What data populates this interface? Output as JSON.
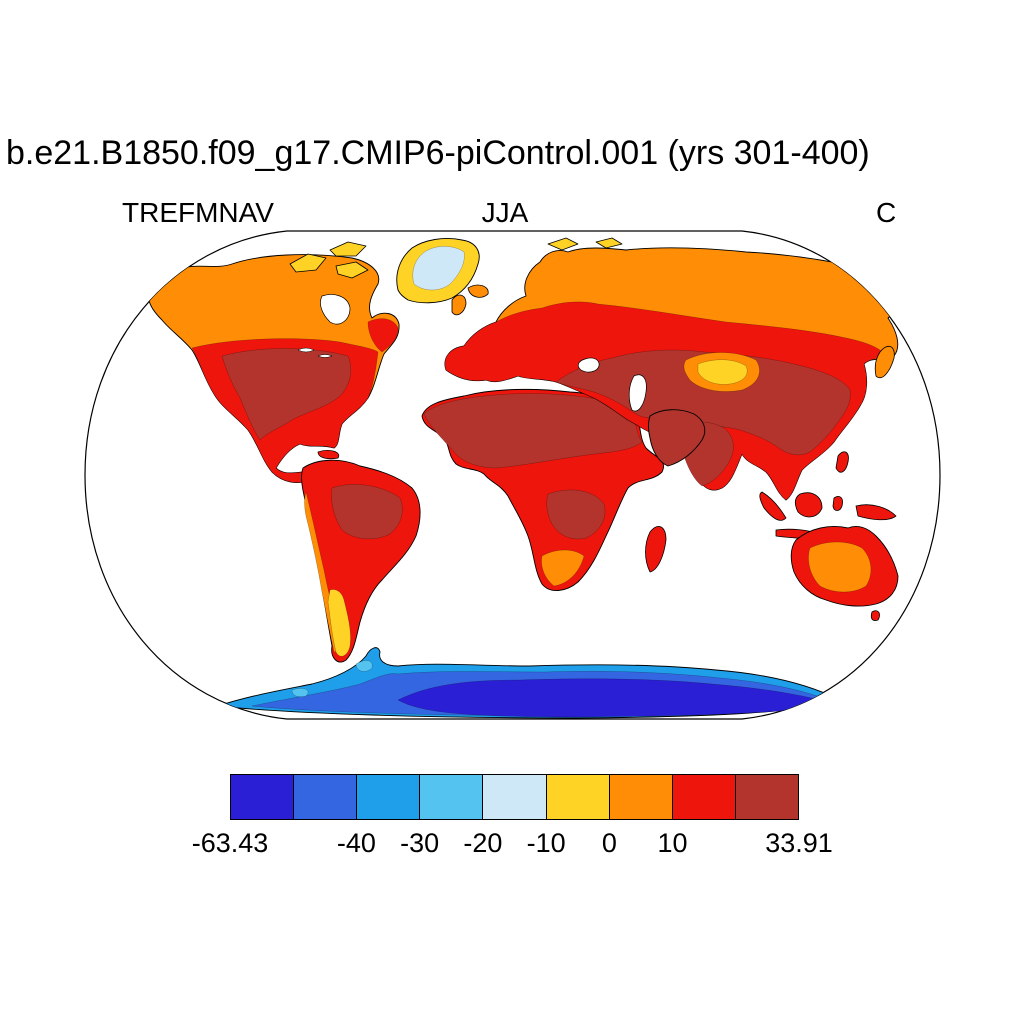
{
  "title": "b.e21.B1850.f09_g17.CMIP6-piControl.001 (yrs 301-400)",
  "header": {
    "variable": "TREFMNAV",
    "season": "JJA",
    "units": "C"
  },
  "chart_data": {
    "type": "heatmap",
    "subtype": "filled-contour-global-map",
    "projection": "Robinson",
    "title": "b.e21.B1850.f09_g17.CMIP6-piControl.001 (yrs 301-400)",
    "variable": "TREFMNAV",
    "season": "JJA",
    "units": "C",
    "data_min": -63.43,
    "data_max": 33.91,
    "contour_levels": [
      -50,
      -40,
      -30,
      -20,
      -10,
      0,
      10,
      20
    ],
    "colorbar": {
      "num_boxes": 9,
      "colors": [
        "#2b1fd5",
        "#3566e2",
        "#1f9fea",
        "#55c3ef",
        "#cfe8f7",
        "#ffd226",
        "#ff8d05",
        "#ee150d",
        "#b2342c"
      ],
      "tick_labels": [
        "-63.43",
        "-40",
        "-30",
        "-20",
        "-10",
        "0",
        "10",
        "33.91"
      ],
      "tick_positions": [
        0,
        2,
        3,
        4,
        5,
        6,
        7,
        9
      ]
    },
    "legend_position": "bottom",
    "ocean_rendered_as": "white",
    "regions": [
      {
        "name": "Antarctica interior",
        "range_c": "below -40"
      },
      {
        "name": "Antarctic coastal fringe",
        "range_c": "-40 to -20"
      },
      {
        "name": "Greenland ice sheet interior",
        "range_c": "-20 to -10"
      },
      {
        "name": "Greenland margin, Arctic islands, Patagonia tip, Tibet patch",
        "range_c": "-10 to 0"
      },
      {
        "name": "Alaska, boreal Canada, Siberia, Scandinavia, Andes, southern Africa tip, Australian interior",
        "range_c": "0 to 10"
      },
      {
        "name": "United States margins, Europe, Brazil, Southeast Asia, Australia rim",
        "range_c": "10 to 20"
      },
      {
        "name": "Central North America, Amazon, Sahara, Arabia, India, China",
        "range_c": "above 20"
      }
    ]
  }
}
